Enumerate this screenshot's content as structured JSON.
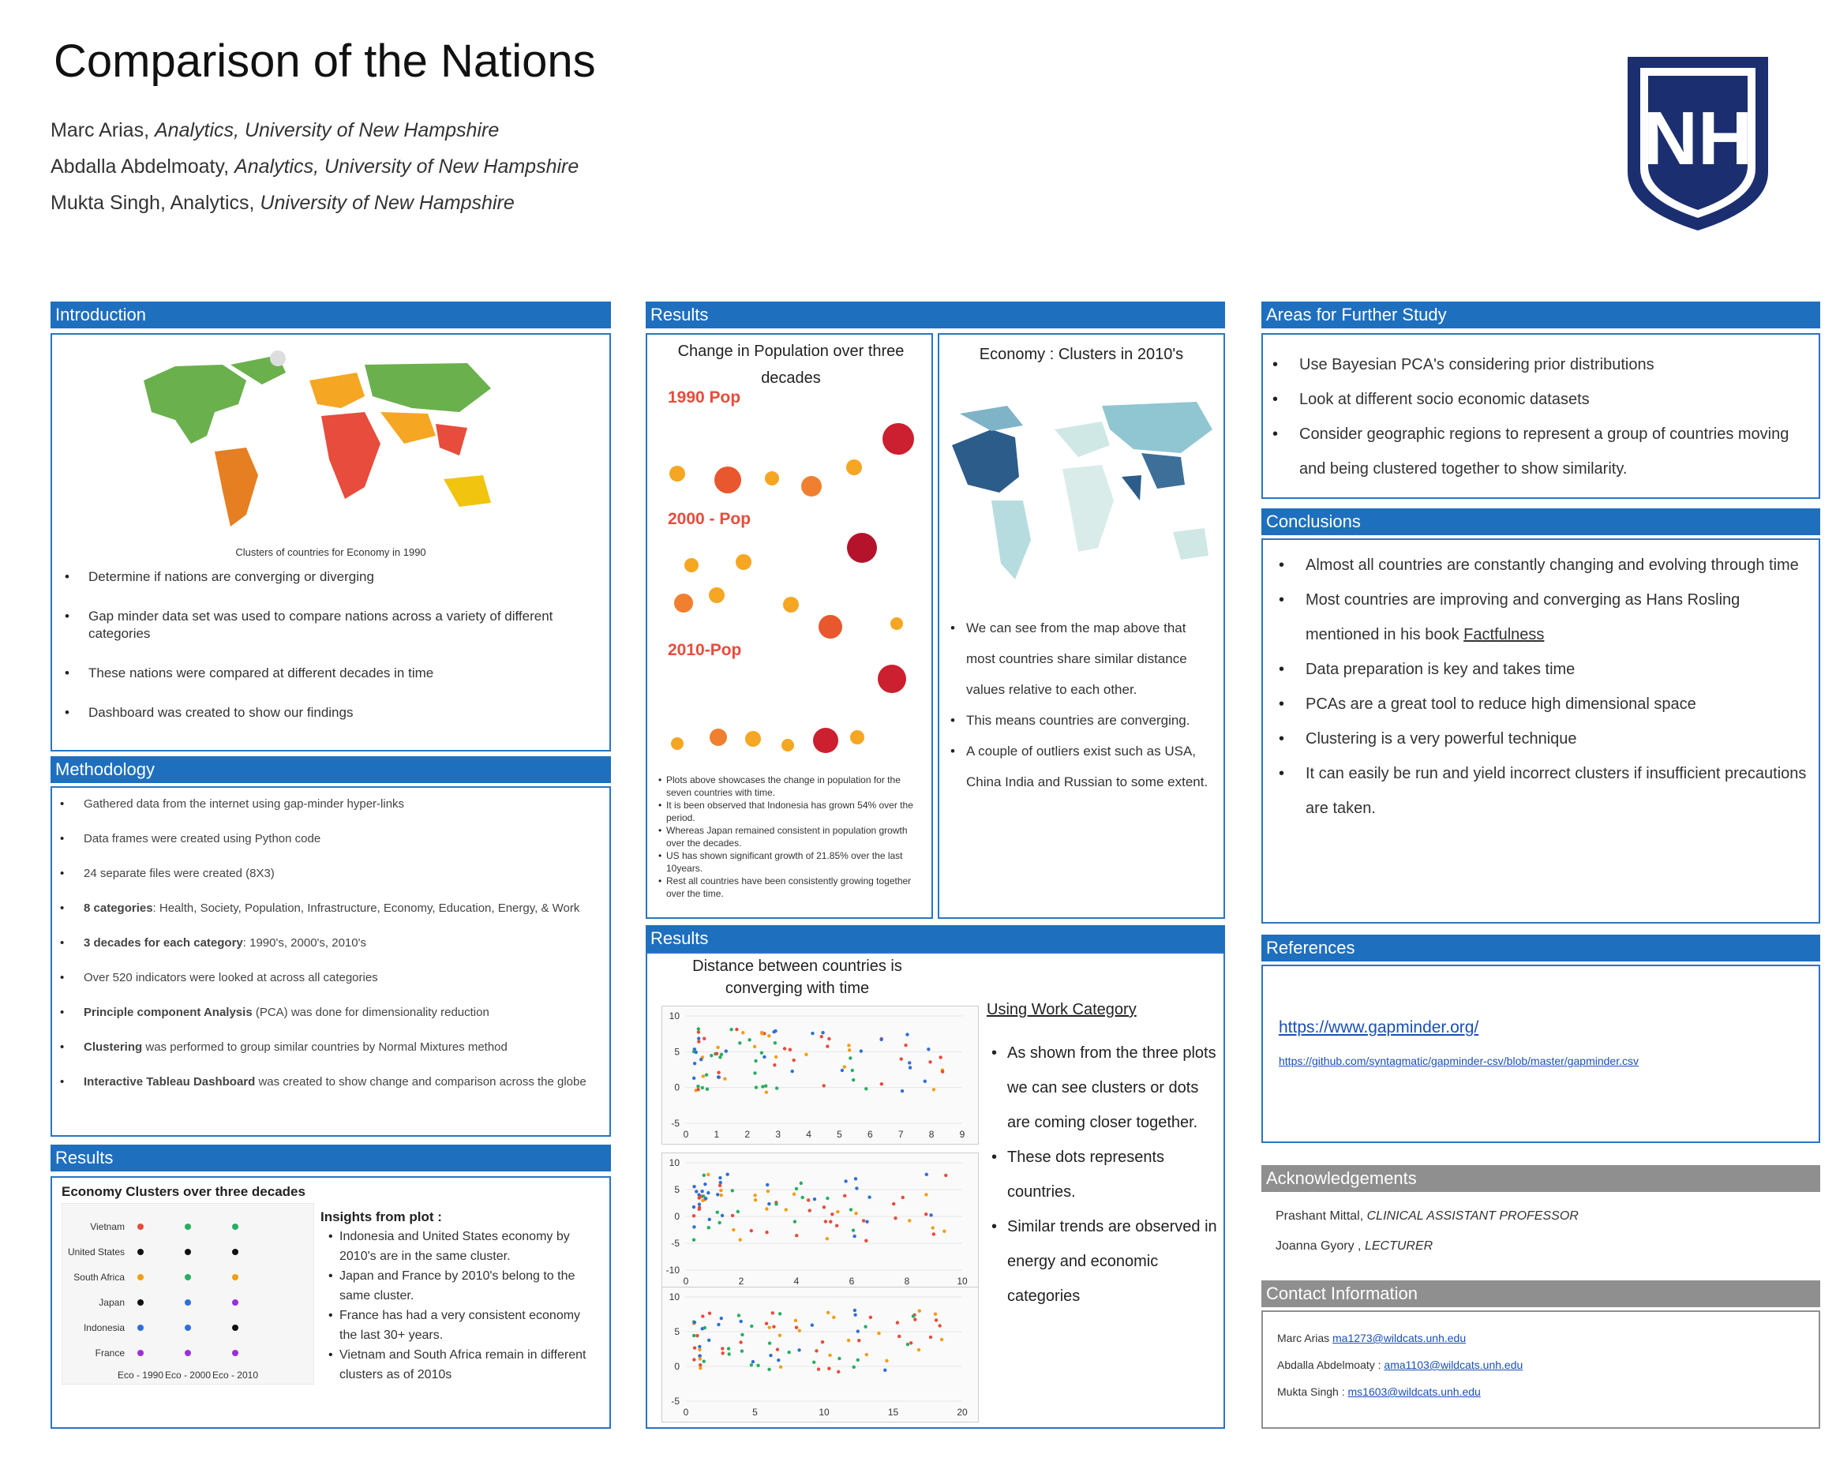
{
  "header": {
    "title": "Comparison of the Nations",
    "authors": [
      {
        "name": "Marc Arias, ",
        "affil": "Analytics, University of New Hampshire"
      },
      {
        "name": "Abdalla Abdelmoaty, ",
        "affil": "Analytics, University of New Hampshire"
      },
      {
        "name": "Mukta Singh, Analytics, ",
        "affil": "University of New Hampshire"
      }
    ],
    "logo_text": "NH"
  },
  "introduction": {
    "heading": "Introduction",
    "map_caption": "Clusters of countries for Economy in 1990",
    "bullets": [
      "Determine if nations are converging or diverging",
      "Gap minder data set was used to compare nations across a variety of different categories",
      "These nations were compared at different decades in time",
      "Dashboard was created to show our findings"
    ]
  },
  "methodology": {
    "heading": "Methodology",
    "bullets": [
      {
        "bold": "",
        "text": "Gathered data from the internet using gap-minder hyper-links"
      },
      {
        "bold": "",
        "text": "Data frames were created using Python code"
      },
      {
        "bold": "",
        "text": "24 separate files were created (8X3)"
      },
      {
        "bold": "8 categories",
        "text": ": Health, Society, Population, Infrastructure, Economy, Education, Energy, & Work"
      },
      {
        "bold": "3 decades for each category",
        "text": ": 1990's, 2000's, 2010's"
      },
      {
        "bold": "",
        "text": "Over 520 indicators were looked at across all categories"
      },
      {
        "bold": "Principle component Analysis",
        "text": " (PCA) was done for dimensionality reduction"
      },
      {
        "bold": "Clustering",
        "text": " was performed to group similar countries by Normal Mixtures method"
      },
      {
        "bold": "Interactive Tableau Dashboard",
        "text": " was created to show change and comparison across the globe"
      }
    ]
  },
  "results_left": {
    "heading": "Results",
    "chart_title": "Economy Clusters over three decades",
    "insights_title": "Insights from plot :",
    "insights": [
      "Indonesia and United States economy by 2010's are in the same cluster.",
      "Japan and France by 2010's belong to the same cluster.",
      "France has had a very consistent economy the last 30+ years.",
      "Vietnam and South Africa remain in different clusters as of 2010s"
    ],
    "chart_data": {
      "type": "scatter",
      "categories": [
        "Eco - 1990",
        "Eco - 2000",
        "Eco - 2010"
      ],
      "countries": [
        "Vietnam",
        "United States",
        "South Africa",
        "Japan",
        "Indonesia",
        "France"
      ],
      "clusters": [
        [
          "red",
          "green",
          "green"
        ],
        [
          "black",
          "black",
          "black"
        ],
        [
          "orange",
          "green",
          "orange"
        ],
        [
          "black",
          "blue",
          "purple"
        ],
        [
          "blue",
          "blue",
          "black"
        ],
        [
          "purple",
          "purple",
          "purple"
        ]
      ]
    }
  },
  "results_mid": {
    "heading": "Results",
    "pop_title": "Change in Population over three decades",
    "pop_labels": [
      "1990 Pop",
      "2000 - Pop",
      "2010-Pop"
    ],
    "pop_notes": [
      "Plots above showcases the change in population for the seven countries with time.",
      "It is been observed that Indonesia has grown 54% over the period.",
      "Whereas Japan remained consistent in population growth over the decades.",
      "US has shown significant growth of 21.85% over the last 10years.",
      "Rest all countries have been consistently growing together over the time."
    ],
    "econ_title": "Economy : Clusters in 2010's",
    "econ_bullets": [
      "We can see from the map above that most countries share similar distance values relative to each other.",
      "This means countries are converging.",
      "A couple of outliers exist such as USA, China India and Russian to some extent."
    ]
  },
  "results_mid2": {
    "heading": "Results",
    "title": "Distance between countries is converging with time",
    "side_title": "Using Work Category",
    "side_bullets": [
      "As shown from the three plots we can see clusters or dots are coming closer together.",
      "These dots represents countries.",
      "Similar trends are observed in energy and economic categories"
    ],
    "plots": [
      {
        "xticks": [
          "0",
          "1",
          "2",
          "3",
          "4",
          "5",
          "6",
          "7",
          "8",
          "9"
        ],
        "yticks": [
          "10",
          "5",
          "0",
          "-5"
        ]
      },
      {
        "xticks": [
          "0",
          "2",
          "4",
          "6",
          "8",
          "10"
        ],
        "yticks": [
          "10",
          "5",
          "0",
          "-5",
          "-10"
        ]
      },
      {
        "xticks": [
          "0",
          "5",
          "10",
          "15",
          "20"
        ],
        "yticks": [
          "10",
          "5",
          "0",
          "-5"
        ]
      }
    ]
  },
  "further": {
    "heading": "Areas for Further Study",
    "bullets": [
      "Use Bayesian PCA's considering prior distributions",
      "Look at different socio economic datasets",
      "Consider geographic regions to represent a group of countries moving and being clustered together to show similarity."
    ]
  },
  "conclusions": {
    "heading": "Conclusions",
    "bullets": [
      {
        "text": "Almost all countries are constantly changing and evolving through time",
        "link": ""
      },
      {
        "text": "Most countries are improving and converging as Hans Rosling mentioned in his book ",
        "link": "Factfulness"
      },
      {
        "text": "Data preparation is key and takes time",
        "link": ""
      },
      {
        "text": "PCAs are a great tool to reduce high dimensional space",
        "link": ""
      },
      {
        "text": "Clustering is a very powerful technique",
        "link": ""
      },
      {
        "text": "It can easily be run and yield incorrect clusters if insufficient precautions are taken.",
        "link": ""
      }
    ]
  },
  "references": {
    "heading": "References",
    "links": [
      "https://www.gapminder.org/",
      "https://github.com/syntagmatic/gapminder-csv/blob/master/gapminder.csv"
    ]
  },
  "acknowledgements": {
    "heading": "Acknowledgements",
    "people": [
      {
        "name": "Prashant Mittal, ",
        "role": "CLINICAL ASSISTANT PROFESSOR"
      },
      {
        "name": "Joanna Gyory , ",
        "role": "LECTURER"
      }
    ]
  },
  "contact": {
    "heading": "Contact Information",
    "people": [
      {
        "name": "Marc Arias ",
        "email": "ma1273@wildcats.unh.edu"
      },
      {
        "name": "Abdalla Abdelmoaty : ",
        "email": "ama1103@wildcats.unh.edu"
      },
      {
        "name": "Mukta Singh : ",
        "email": "ms1603@wildcats.unh.edu"
      }
    ]
  },
  "colors": {
    "header_blue": "#1f6fbf",
    "logo_navy": "#1b2f70",
    "gray_header": "#8f8f8f"
  }
}
